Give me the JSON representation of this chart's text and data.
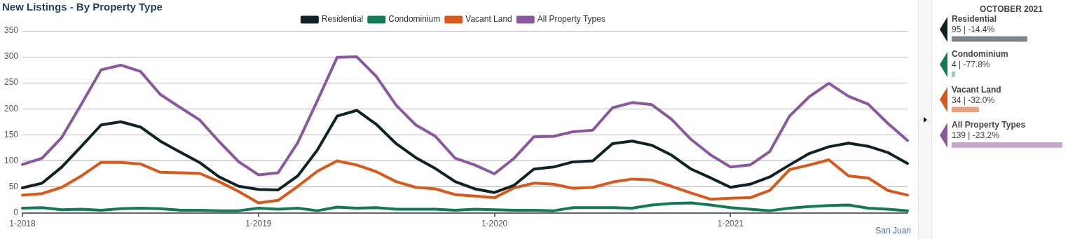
{
  "chart_data": [
    {
      "type": "line",
      "title": "New Listings - By Property Type",
      "categories": [
        "1-2018",
        null,
        null,
        null,
        null,
        null,
        null,
        null,
        null,
        null,
        null,
        null,
        "1-2019",
        null,
        null,
        null,
        null,
        null,
        null,
        null,
        null,
        null,
        null,
        null,
        "1-2020",
        null,
        null,
        null,
        null,
        null,
        null,
        null,
        null,
        null,
        null,
        null,
        "1-2021",
        null,
        null,
        null,
        null,
        null,
        null,
        null,
        null,
        null
      ],
      "series": [
        {
          "name": "Residential",
          "color": "#0f2226",
          "values": [
            48,
            57,
            88,
            128,
            169,
            175,
            165,
            138,
            117,
            97,
            69,
            51,
            45,
            44,
            71,
            121,
            186,
            197,
            170,
            133,
            106,
            85,
            60,
            46,
            39,
            53,
            84,
            88,
            98,
            100,
            133,
            138,
            130,
            111,
            84,
            67,
            49,
            55,
            69,
            92,
            114,
            127,
            134,
            128,
            116,
            95
          ]
        },
        {
          "name": "Condominium",
          "color": "#137a58",
          "values": [
            9,
            10,
            6,
            7,
            5,
            8,
            9,
            8,
            5,
            5,
            4,
            4,
            9,
            7,
            9,
            4,
            11,
            9,
            10,
            7,
            7,
            7,
            5,
            7,
            6,
            5,
            5,
            4,
            10,
            10,
            10,
            9,
            15,
            18,
            19,
            15,
            10,
            7,
            4,
            9,
            12,
            14,
            15,
            9,
            7,
            4
          ]
        },
        {
          "name": "Vacant Land",
          "color": "#d9581a",
          "values": [
            34,
            37,
            49,
            71,
            97,
            97,
            94,
            78,
            77,
            76,
            60,
            41,
            19,
            24,
            51,
            80,
            100,
            92,
            79,
            60,
            49,
            46,
            35,
            32,
            29,
            48,
            57,
            55,
            47,
            49,
            59,
            65,
            63,
            51,
            38,
            26,
            28,
            29,
            43,
            83,
            92,
            102,
            71,
            67,
            43,
            34
          ]
        },
        {
          "name": "All Property Types",
          "color": "#8b58a0",
          "values": [
            93,
            105,
            145,
            209,
            275,
            284,
            272,
            228,
            203,
            179,
            137,
            98,
            73,
            77,
            135,
            216,
            299,
            300,
            262,
            207,
            169,
            147,
            105,
            92,
            75,
            105,
            146,
            147,
            156,
            159,
            202,
            212,
            208,
            180,
            141,
            111,
            88,
            92,
            118,
            186,
            223,
            249,
            224,
            209,
            172,
            139
          ]
        }
      ],
      "ylim": [
        0,
        350
      ],
      "yticks": [
        0,
        50,
        100,
        150,
        200,
        250,
        300,
        350
      ],
      "grid": "y",
      "legend": "top",
      "marker": "none",
      "line_style": "solid",
      "annotations": [
        "San Juan"
      ]
    },
    {
      "type": "bar",
      "orientation": "horizontal",
      "title": "OCTOBER 2021",
      "categories": [
        "Residential",
        "Condominium",
        "Vacant Land",
        "All Property Types"
      ],
      "values": [
        95,
        4,
        34,
        139
      ],
      "colors": [
        "#7d8588",
        "#9fc9b8",
        "#e9a27e",
        "#c9a6cf"
      ],
      "value_labels": [
        "95 | -14.4%",
        "4 | -77.8%",
        "34 | -32.0%",
        "139 | -23.2%"
      ]
    }
  ]
}
